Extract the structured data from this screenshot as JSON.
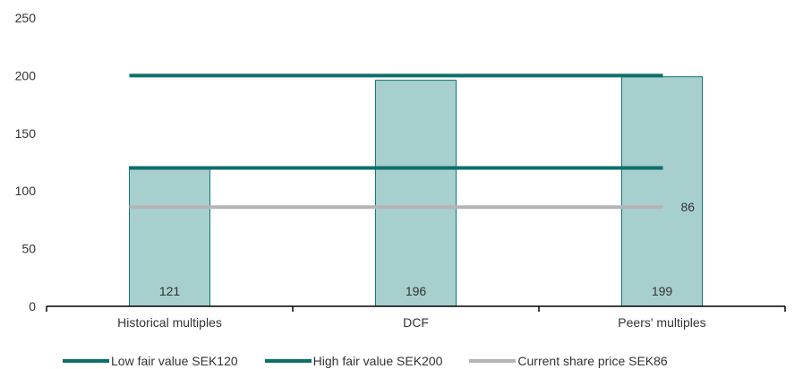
{
  "chart_data": {
    "type": "bar",
    "categories": [
      "Historical multiples",
      "DCF",
      "Peers' multiples"
    ],
    "values": [
      121,
      196,
      199
    ],
    "value_labels": [
      "121",
      "196",
      "199"
    ],
    "ylim": [
      0,
      250
    ],
    "yticks": [
      "0",
      "50",
      "100",
      "150",
      "200",
      "250"
    ],
    "grid": false,
    "bar_color": "#a7cfcd",
    "bar_border": "#0f7a78",
    "reference_lines": [
      {
        "name": "Low fair value SEK120",
        "value": 120,
        "color": "#0d6e6b"
      },
      {
        "name": "High fair value SEK200",
        "value": 200,
        "color": "#0d6e6b"
      },
      {
        "name": "Current share price SEK86",
        "value": 86,
        "color": "#b5b5b5",
        "label": "86"
      }
    ],
    "legend_position": "bottom"
  }
}
